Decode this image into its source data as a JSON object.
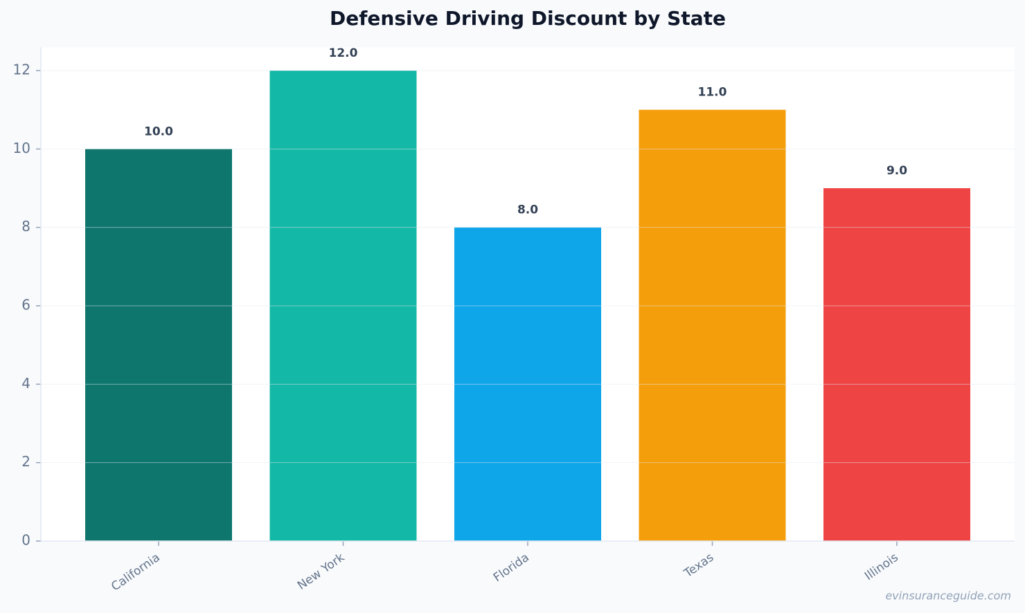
{
  "chart_data": {
    "type": "bar",
    "title": "Defensive Driving Discount by State",
    "categories": [
      "California",
      "New York",
      "Florida",
      "Texas",
      "Illinois"
    ],
    "values": [
      10,
      12,
      8,
      11,
      9
    ],
    "value_labels": [
      "10.0",
      "12.0",
      "8.0",
      "11.0",
      "9.0"
    ],
    "colors": [
      "#0f766e",
      "#14b8a6",
      "#0ea5e9",
      "#f59e0b",
      "#ef4444"
    ],
    "ylim": [
      0,
      12.6
    ],
    "yticks": [
      0,
      2,
      4,
      6,
      8,
      10,
      12
    ],
    "grid": true,
    "watermark": "evinsuranceguide.com"
  }
}
